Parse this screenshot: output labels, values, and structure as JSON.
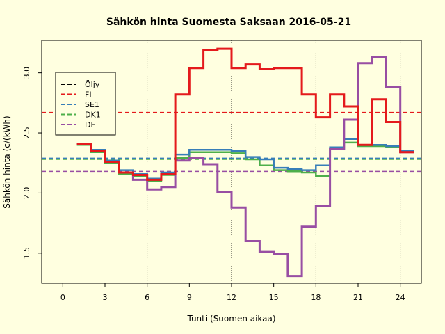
{
  "chart_data": {
    "type": "line",
    "title": "Sähkön hinta Suomesta Saksaan 2016-05-21",
    "xlabel": "Tunti (Suomen aikaa)",
    "ylabel": "Sähkön hinta (c/(kWh)",
    "xlim": [
      -1.5,
      25.5
    ],
    "ylim": [
      1.25,
      3.27
    ],
    "xticks": [
      0,
      3,
      6,
      9,
      12,
      15,
      18,
      21,
      24
    ],
    "yticks": [
      1.5,
      2.0,
      2.5,
      3.0
    ],
    "ytick_labels": [
      "1.5",
      "2.0",
      "2.5",
      "3.0"
    ],
    "vlines": [
      6,
      12,
      18,
      24
    ],
    "grid": false,
    "legend_position": "top-left",
    "background": "#ffffe0",
    "legend": [
      {
        "name": "Öljy",
        "color": "#000000"
      },
      {
        "name": "FI",
        "color": "#e41a1c"
      },
      {
        "name": "SE1",
        "color": "#377eb8"
      },
      {
        "name": "DK1",
        "color": "#4daf4a"
      },
      {
        "name": "DE",
        "color": "#984ea3"
      }
    ],
    "hlines": [
      {
        "name": "FI",
        "y": 2.67,
        "color": "#e41a1c"
      },
      {
        "name": "SE1",
        "y": 2.29,
        "color": "#377eb8"
      },
      {
        "name": "DK1",
        "y": 2.28,
        "color": "#4daf4a"
      },
      {
        "name": "DE",
        "y": 2.18,
        "color": "#984ea3"
      }
    ],
    "x_steps": [
      1,
      2,
      3,
      4,
      5,
      6,
      7,
      8,
      9,
      10,
      11,
      12,
      13,
      14,
      15,
      16,
      17,
      18,
      19,
      20,
      21,
      22,
      23,
      24,
      25
    ],
    "series": [
      {
        "name": "DK1",
        "color": "#4daf4a",
        "width": 2.5,
        "values": [
          2.4,
          2.34,
          2.25,
          2.16,
          2.14,
          2.1,
          2.15,
          2.29,
          2.34,
          2.34,
          2.34,
          2.33,
          2.28,
          2.23,
          2.19,
          2.18,
          2.17,
          2.14,
          2.37,
          2.42,
          2.39,
          2.39,
          2.38,
          2.34
        ]
      },
      {
        "name": "SE1",
        "color": "#377eb8",
        "width": 2.5,
        "values": [
          2.41,
          2.36,
          2.27,
          2.19,
          2.16,
          2.12,
          2.17,
          2.32,
          2.36,
          2.36,
          2.36,
          2.35,
          2.3,
          2.28,
          2.21,
          2.2,
          2.19,
          2.23,
          2.38,
          2.45,
          2.4,
          2.4,
          2.39,
          2.35
        ]
      },
      {
        "name": "DE",
        "color": "#984ea3",
        "width": 3,
        "values": [
          2.41,
          2.35,
          2.26,
          2.17,
          2.11,
          2.03,
          2.05,
          2.27,
          2.29,
          2.24,
          2.01,
          1.88,
          1.6,
          1.51,
          1.49,
          1.31,
          1.72,
          1.89,
          2.37,
          2.61,
          3.08,
          3.13,
          2.88,
          2.34
        ]
      },
      {
        "name": "FI",
        "color": "#e41a1c",
        "width": 3,
        "values": [
          2.41,
          2.35,
          2.26,
          2.17,
          2.15,
          2.11,
          2.16,
          2.82,
          3.04,
          3.19,
          3.2,
          3.04,
          3.07,
          3.03,
          3.04,
          3.04,
          2.82,
          2.63,
          2.82,
          2.72,
          2.4,
          2.78,
          2.59,
          2.34
        ]
      }
    ]
  }
}
